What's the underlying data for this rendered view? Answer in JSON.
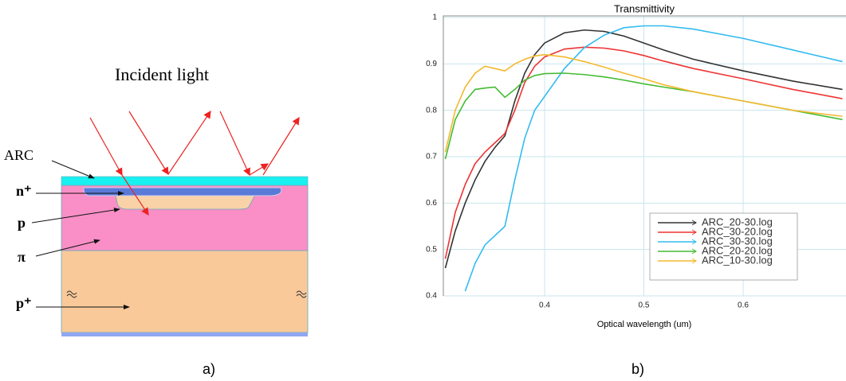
{
  "diagram": {
    "heading": "Incident light",
    "layers": [
      "ARC",
      "n⁺",
      "p",
      "π",
      "p⁺"
    ],
    "caption": "a)"
  },
  "chart_caption": "b)",
  "chart_data": {
    "type": "line",
    "title": "Transmittivity",
    "x_label": "Optical wavelength (um)",
    "x": [
      0.3,
      0.31,
      0.32,
      0.33,
      0.34,
      0.35,
      0.36,
      0.37,
      0.38,
      0.39,
      0.4,
      0.42,
      0.44,
      0.46,
      0.48,
      0.5,
      0.52,
      0.55,
      0.6,
      0.65,
      0.7
    ],
    "xlim": [
      0.3,
      0.7
    ],
    "xticks": [
      0.4,
      0.5,
      0.6
    ],
    "ylim": [
      0.4,
      1
    ],
    "yticks": [
      0.4,
      0.5,
      0.6,
      0.7,
      0.8,
      0.9,
      1
    ],
    "grid": true,
    "legend": "lower right",
    "series": [
      {
        "name": "ARC_20-30.log",
        "color": "#333333",
        "values": [
          0.46,
          0.54,
          0.6,
          0.65,
          0.69,
          0.72,
          0.745,
          0.82,
          0.88,
          0.92,
          0.945,
          0.967,
          0.973,
          0.97,
          0.96,
          0.945,
          0.93,
          0.91,
          0.885,
          0.863,
          0.845
        ]
      },
      {
        "name": "ARC_30-20.log",
        "color": "#ee3333",
        "values": [
          0.48,
          0.58,
          0.64,
          0.685,
          0.71,
          0.73,
          0.75,
          0.8,
          0.86,
          0.895,
          0.915,
          0.932,
          0.936,
          0.934,
          0.928,
          0.918,
          0.906,
          0.89,
          0.868,
          0.845,
          0.825
        ]
      },
      {
        "name": "ARC_30-30.log",
        "color": "#33bbee",
        "values": [
          null,
          null,
          0.41,
          0.47,
          0.51,
          0.53,
          0.55,
          0.65,
          0.74,
          0.8,
          0.83,
          0.89,
          0.935,
          0.962,
          0.978,
          0.982,
          0.982,
          0.975,
          0.955,
          0.93,
          0.905
        ]
      },
      {
        "name": "ARC_20-20.log",
        "color": "#44bb33",
        "values": [
          0.695,
          0.78,
          0.82,
          0.845,
          0.848,
          0.85,
          0.828,
          0.845,
          0.865,
          0.875,
          0.879,
          0.88,
          0.877,
          0.872,
          0.865,
          0.857,
          0.85,
          0.84,
          0.82,
          0.8,
          0.78
        ]
      },
      {
        "name": "ARC_10-30.log",
        "color": "#f5b82e",
        "values": [
          0.71,
          0.8,
          0.85,
          0.88,
          0.895,
          0.89,
          0.885,
          0.9,
          0.91,
          0.917,
          0.92,
          0.915,
          0.905,
          0.893,
          0.88,
          0.868,
          0.855,
          0.84,
          0.82,
          0.8,
          0.787
        ]
      }
    ]
  }
}
